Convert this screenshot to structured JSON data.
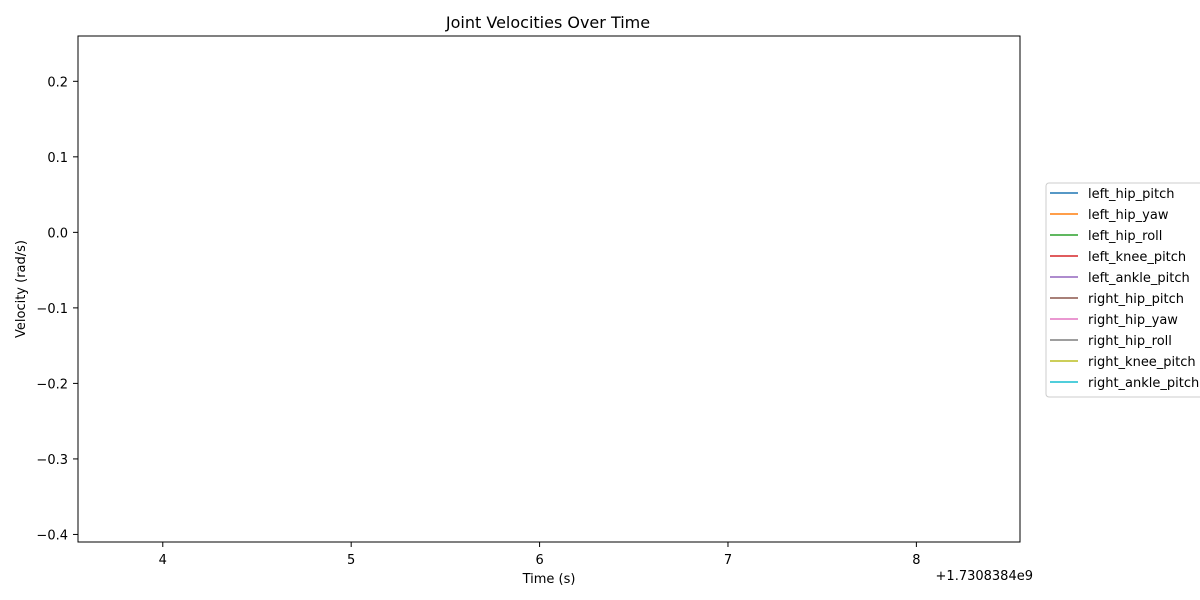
{
  "chart_data": {
    "type": "line",
    "title": "Joint Velocities Over Time",
    "xlabel": "Time (s)",
    "ylabel": "Velocity (rad/s)",
    "x_offset_label": "+1.7308384e9",
    "xlim": [
      3.55,
      8.55
    ],
    "ylim": [
      -0.41,
      0.26
    ],
    "x_ticks": [
      4,
      5,
      6,
      7,
      8
    ],
    "x_tick_labels": [
      "4",
      "5",
      "6",
      "7",
      "8"
    ],
    "y_ticks": [
      0.2,
      0.1,
      0.0,
      -0.1,
      -0.2,
      -0.3,
      -0.4
    ],
    "y_tick_labels": [
      "0.2",
      "0.1",
      "0.0",
      "−0.1",
      "−0.2",
      "−0.3",
      "−0.4"
    ],
    "grid": false,
    "legend_position": "right",
    "series": [
      {
        "name": "left_hip_pitch",
        "color": "#1f77b4",
        "x": [],
        "y": []
      },
      {
        "name": "left_hip_yaw",
        "color": "#ff7f0e",
        "x": [],
        "y": []
      },
      {
        "name": "left_hip_roll",
        "color": "#2ca02c",
        "x": [],
        "y": []
      },
      {
        "name": "left_knee_pitch",
        "color": "#d62728",
        "x": [],
        "y": []
      },
      {
        "name": "left_ankle_pitch",
        "color": "#9467bd",
        "x": [],
        "y": []
      },
      {
        "name": "right_hip_pitch",
        "color": "#8c564b",
        "x": [],
        "y": []
      },
      {
        "name": "right_hip_yaw",
        "color": "#e377c2",
        "x": [],
        "y": []
      },
      {
        "name": "right_hip_roll",
        "color": "#7f7f7f",
        "x": [],
        "y": []
      },
      {
        "name": "right_knee_pitch",
        "color": "#bcbd22",
        "x": [],
        "y": []
      },
      {
        "name": "right_ankle_pitch",
        "color": "#17becf",
        "x": [],
        "y": []
      }
    ]
  }
}
